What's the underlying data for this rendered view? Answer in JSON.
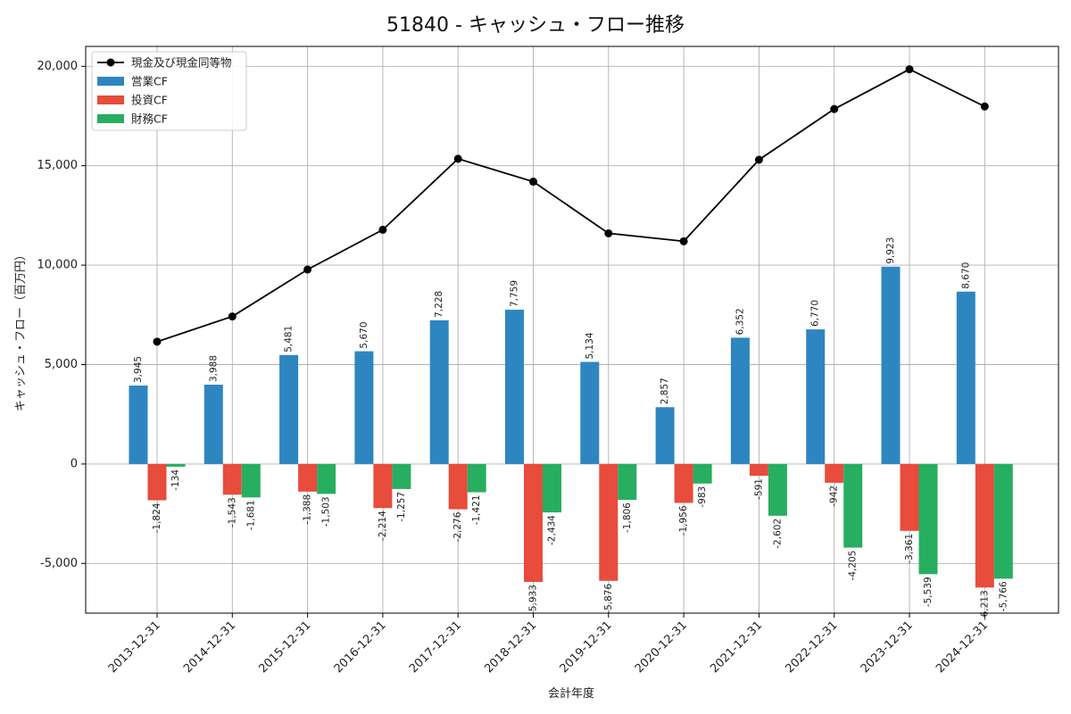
{
  "chart_data": {
    "type": "bar",
    "title": "51840 - キャッシュ・フロー推移",
    "xlabel": "会計年度",
    "ylabel": "キャッシュ・フロー（百万円）",
    "categories": [
      "2013-12-31",
      "2014-12-31",
      "2015-12-31",
      "2016-12-31",
      "2017-12-31",
      "2018-12-31",
      "2019-12-31",
      "2020-12-31",
      "2021-12-31",
      "2022-12-31",
      "2023-12-31",
      "2024-12-31"
    ],
    "ylim": [
      -7500,
      21000
    ],
    "yticks": [
      -5000,
      0,
      5000,
      10000,
      15000,
      20000
    ],
    "ytick_labels": [
      "-5,000",
      "0",
      "5,000",
      "10,000",
      "15,000",
      "20,000"
    ],
    "grid": true,
    "legend_position": "top-left",
    "series": [
      {
        "name": "営業CF",
        "kind": "bar",
        "color": "#2e86c1",
        "values": [
          3945,
          3988,
          5481,
          5670,
          7228,
          7759,
          5134,
          2857,
          6352,
          6770,
          9923,
          8670
        ],
        "labels": [
          "3,945",
          "3,988",
          "5,481",
          "5,670",
          "7,228",
          "7,759",
          "5,134",
          "2,857",
          "6,352",
          "6,770",
          "9,923",
          "8,670"
        ]
      },
      {
        "name": "投資CF",
        "kind": "bar",
        "color": "#e74c3c",
        "values": [
          -1824,
          -1543,
          -1388,
          -2214,
          -2276,
          -5933,
          -5876,
          -1956,
          -591,
          -942,
          -3361,
          -6213
        ],
        "labels": [
          "-1,824",
          "-1,543",
          "-1,388",
          "-2,214",
          "-2,276",
          "-5,933",
          "-5,876",
          "-1,956",
          "-591",
          "-942",
          "-3,361",
          "-6,213"
        ]
      },
      {
        "name": "財務CF",
        "kind": "bar",
        "color": "#27ae60",
        "values": [
          -134,
          -1681,
          -1503,
          -1257,
          -1421,
          -2434,
          -1806,
          -983,
          -2602,
          -4205,
          -5539,
          -5766
        ],
        "labels": [
          "-134",
          "-1,681",
          "-1,503",
          "-1,257",
          "-1,421",
          "-2,434",
          "-1,806",
          "-983",
          "-2,602",
          "-4,205",
          "-5,539",
          "-5,766"
        ]
      },
      {
        "name": "現金及び現金同等物",
        "kind": "line",
        "color": "#000000",
        "values": [
          6150,
          7420,
          9780,
          11780,
          15350,
          14200,
          11600,
          11200,
          15300,
          17850,
          19850,
          17980
        ]
      }
    ]
  }
}
